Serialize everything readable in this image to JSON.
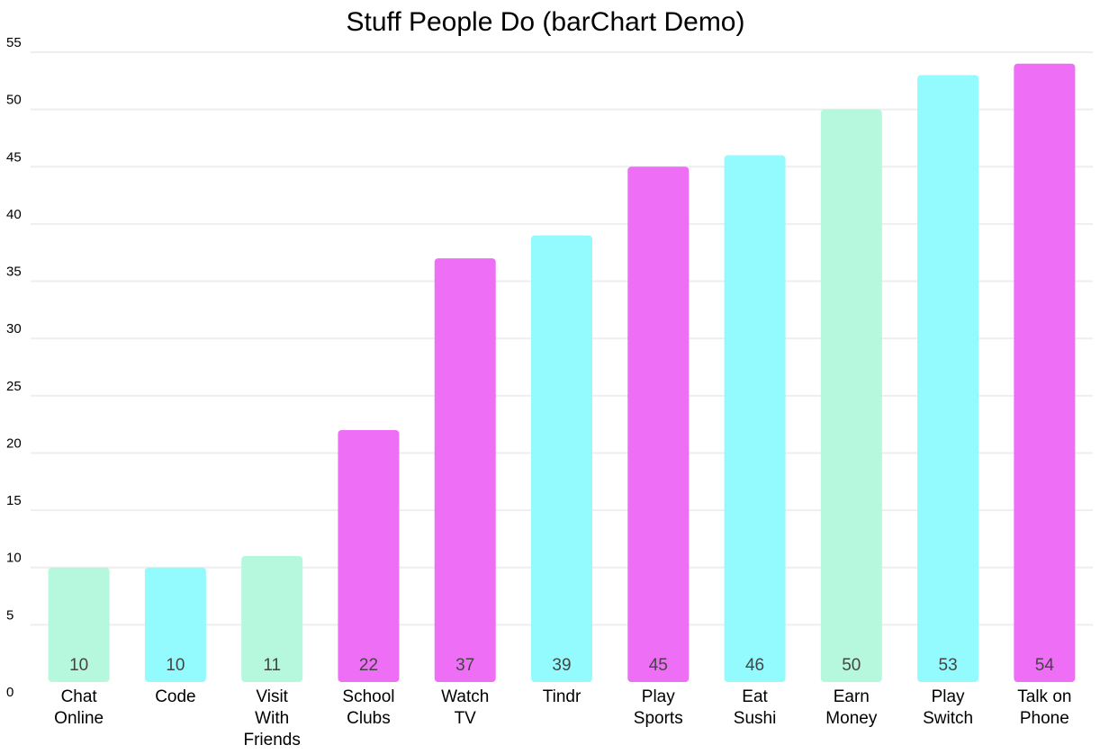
{
  "chart_data": {
    "type": "bar",
    "title": "Stuff People Do (barChart Demo)",
    "xlabel": "",
    "ylabel": "",
    "ylim": [
      0,
      55
    ],
    "yticks": [
      0,
      5,
      10,
      15,
      20,
      25,
      30,
      35,
      40,
      45,
      50,
      55
    ],
    "grid": true,
    "legend": "none",
    "categories": [
      [
        "Chat",
        "Online"
      ],
      [
        "Code"
      ],
      [
        "Visit",
        "With",
        "Friends"
      ],
      [
        "School",
        "Clubs"
      ],
      [
        "Watch",
        "TV"
      ],
      [
        "Tindr"
      ],
      [
        "Play",
        "Sports"
      ],
      [
        "Eat",
        "Sushi"
      ],
      [
        "Earn",
        "Money"
      ],
      [
        "Play",
        "Switch"
      ],
      [
        "Talk on",
        "Phone"
      ]
    ],
    "values": [
      10,
      10,
      11,
      22,
      37,
      39,
      45,
      46,
      50,
      53,
      54
    ],
    "colors": [
      "#b5f8de",
      "#93fbfd",
      "#b5f8de",
      "#ee6ff6",
      "#ee6ff6",
      "#93fbfd",
      "#ee6ff6",
      "#93fbfd",
      "#b5f8de",
      "#93fbfd",
      "#ee6ff6"
    ]
  }
}
